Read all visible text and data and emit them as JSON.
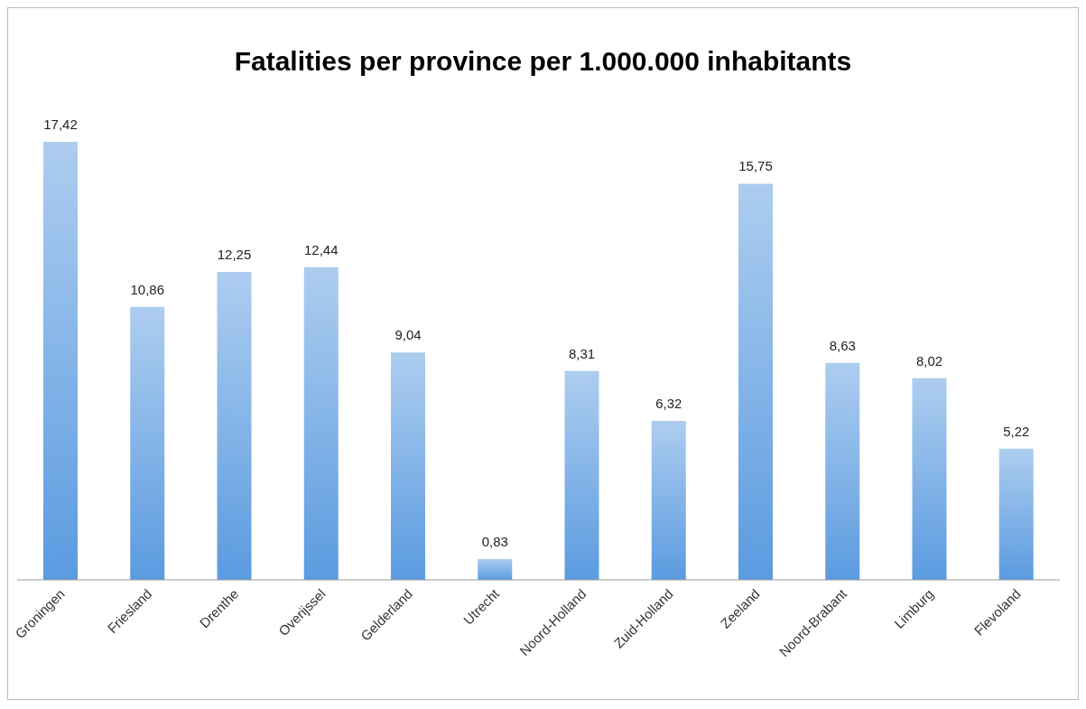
{
  "chart_data": {
    "type": "bar",
    "title": "Fatalities per province per 1.000.000 inhabitants",
    "categories": [
      "Groningen",
      "Friesland",
      "Drenthe",
      "Overijssel",
      "Gelderland",
      "Utrecht",
      "Noord-Holland",
      "Zuid-Holland",
      "Zeeland",
      "Noord-Brabant",
      "Limburg",
      "Flevoland"
    ],
    "values": [
      17.42,
      10.86,
      12.25,
      12.44,
      9.04,
      0.83,
      8.31,
      6.32,
      15.75,
      8.63,
      8.02,
      5.22
    ],
    "value_labels": [
      "17,42",
      "10,86",
      "12,25",
      "12,44",
      "9,04",
      "0,83",
      "8,31",
      "6,32",
      "15,75",
      "8,63",
      "8,02",
      "5,22"
    ],
    "color": "#5b9be0",
    "grid": false,
    "legend": false
  }
}
